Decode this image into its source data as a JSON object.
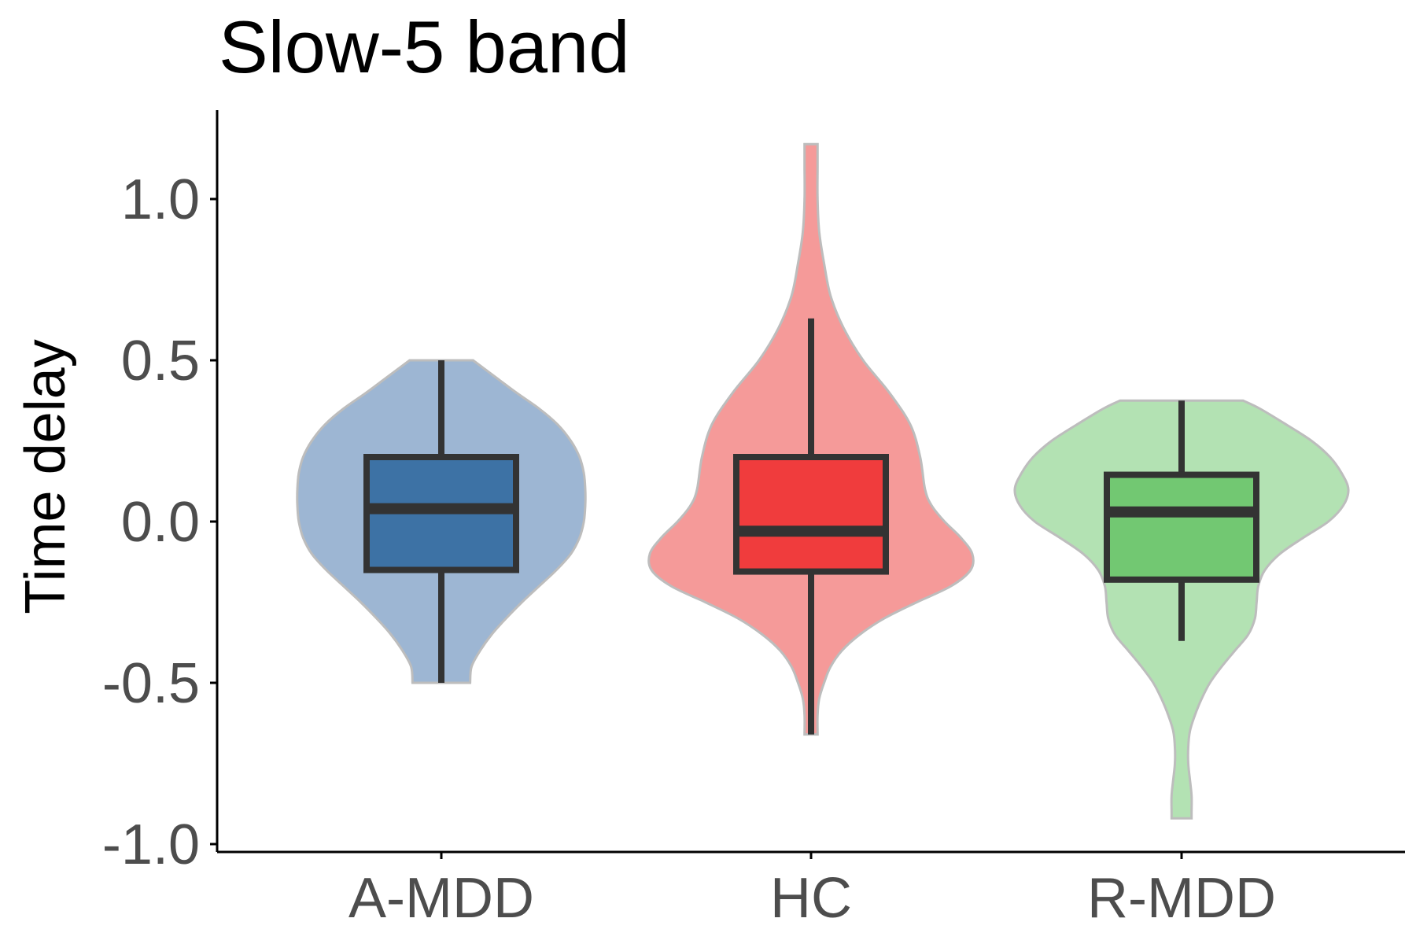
{
  "chart_data": {
    "type": "violin",
    "title": "Slow-5 band",
    "xlabel": "",
    "ylabel": "Time delay",
    "ylim": [
      -1.05,
      1.25
    ],
    "yticks": [
      1.0,
      0.5,
      0.0,
      -0.5,
      -1.0
    ],
    "ytick_labels": [
      "1.0",
      "0.5",
      "0.0",
      "-0.5",
      "-1.0"
    ],
    "categories": [
      "A-MDD",
      "HC",
      "R-MDD"
    ],
    "grid": false,
    "legend": "none",
    "groups": [
      {
        "category": "A-MDD",
        "violin_color": "#9db6d3",
        "box_color": "#3d72a5",
        "box": {
          "whisker_low": -0.5,
          "q1": -0.15,
          "median": 0.04,
          "q3": 0.2,
          "whisker_high": 0.5
        },
        "density": [
          [
            0.5,
            0.22
          ],
          [
            0.45,
            0.37
          ],
          [
            0.4,
            0.52
          ],
          [
            0.35,
            0.68
          ],
          [
            0.3,
            0.81
          ],
          [
            0.25,
            0.9
          ],
          [
            0.2,
            0.96
          ],
          [
            0.15,
            0.99
          ],
          [
            0.1,
            1.0
          ],
          [
            0.05,
            1.0
          ],
          [
            0.0,
            0.99
          ],
          [
            -0.05,
            0.96
          ],
          [
            -0.1,
            0.9
          ],
          [
            -0.15,
            0.8
          ],
          [
            -0.2,
            0.68
          ],
          [
            -0.25,
            0.56
          ],
          [
            -0.3,
            0.45
          ],
          [
            -0.35,
            0.35
          ],
          [
            -0.4,
            0.27
          ],
          [
            -0.45,
            0.21
          ],
          [
            -0.5,
            0.2
          ]
        ]
      },
      {
        "category": "HC",
        "violin_color": "#f59a99",
        "box_color": "#f03c3d",
        "box": {
          "whisker_low": -0.66,
          "q1": -0.155,
          "median": -0.03,
          "q3": 0.2,
          "whisker_high": 0.63
        },
        "density": [
          [
            1.17,
            0.04
          ],
          [
            1.1,
            0.04
          ],
          [
            1.0,
            0.04
          ],
          [
            0.9,
            0.05
          ],
          [
            0.8,
            0.08
          ],
          [
            0.7,
            0.12
          ],
          [
            0.6,
            0.2
          ],
          [
            0.5,
            0.32
          ],
          [
            0.4,
            0.48
          ],
          [
            0.3,
            0.61
          ],
          [
            0.2,
            0.67
          ],
          [
            0.1,
            0.7
          ],
          [
            0.05,
            0.74
          ],
          [
            0.0,
            0.82
          ],
          [
            -0.05,
            0.92
          ],
          [
            -0.1,
            0.99
          ],
          [
            -0.15,
            0.98
          ],
          [
            -0.2,
            0.86
          ],
          [
            -0.25,
            0.65
          ],
          [
            -0.3,
            0.45
          ],
          [
            -0.35,
            0.3
          ],
          [
            -0.4,
            0.19
          ],
          [
            -0.45,
            0.12
          ],
          [
            -0.5,
            0.08
          ],
          [
            -0.55,
            0.05
          ],
          [
            -0.6,
            0.04
          ],
          [
            -0.66,
            0.04
          ]
        ]
      },
      {
        "category": "R-MDD",
        "violin_color": "#b3e2b3",
        "box_color": "#72c872",
        "box": {
          "whisker_low": -0.37,
          "q1": -0.18,
          "median": 0.03,
          "q3": 0.145,
          "whisker_high": 0.375
        },
        "density": [
          [
            0.375,
            0.37
          ],
          [
            0.35,
            0.47
          ],
          [
            0.3,
            0.63
          ],
          [
            0.25,
            0.78
          ],
          [
            0.2,
            0.89
          ],
          [
            0.15,
            0.96
          ],
          [
            0.1,
            1.0
          ],
          [
            0.05,
            0.97
          ],
          [
            0.0,
            0.88
          ],
          [
            -0.05,
            0.73
          ],
          [
            -0.1,
            0.59
          ],
          [
            -0.15,
            0.5
          ],
          [
            -0.2,
            0.46
          ],
          [
            -0.25,
            0.45
          ],
          [
            -0.3,
            0.44
          ],
          [
            -0.35,
            0.4
          ],
          [
            -0.4,
            0.32
          ],
          [
            -0.45,
            0.24
          ],
          [
            -0.5,
            0.17
          ],
          [
            -0.55,
            0.12
          ],
          [
            -0.6,
            0.08
          ],
          [
            -0.65,
            0.05
          ],
          [
            -0.7,
            0.04
          ],
          [
            -0.75,
            0.04
          ],
          [
            -0.8,
            0.05
          ],
          [
            -0.85,
            0.06
          ],
          [
            -0.9,
            0.06
          ],
          [
            -0.92,
            0.06
          ]
        ]
      }
    ]
  }
}
